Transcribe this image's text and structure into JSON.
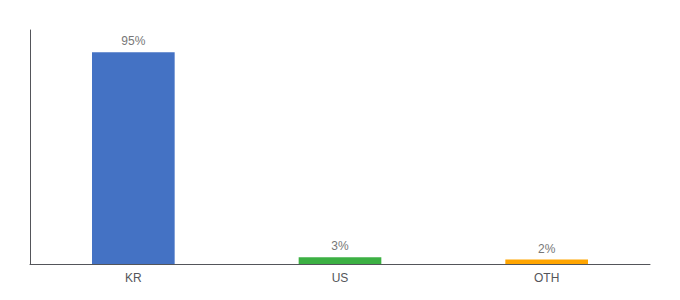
{
  "chart_data": {
    "type": "bar",
    "categories": [
      "KR",
      "US",
      "OTH"
    ],
    "values": [
      95,
      3,
      2
    ],
    "value_labels": [
      "95%",
      "3%",
      "2%"
    ],
    "colors": [
      "#4472C4",
      "#3CB043",
      "#FFA500"
    ],
    "ylim": [
      0,
      105
    ],
    "data_labels": true,
    "tick_labels": "x",
    "grid": false
  }
}
